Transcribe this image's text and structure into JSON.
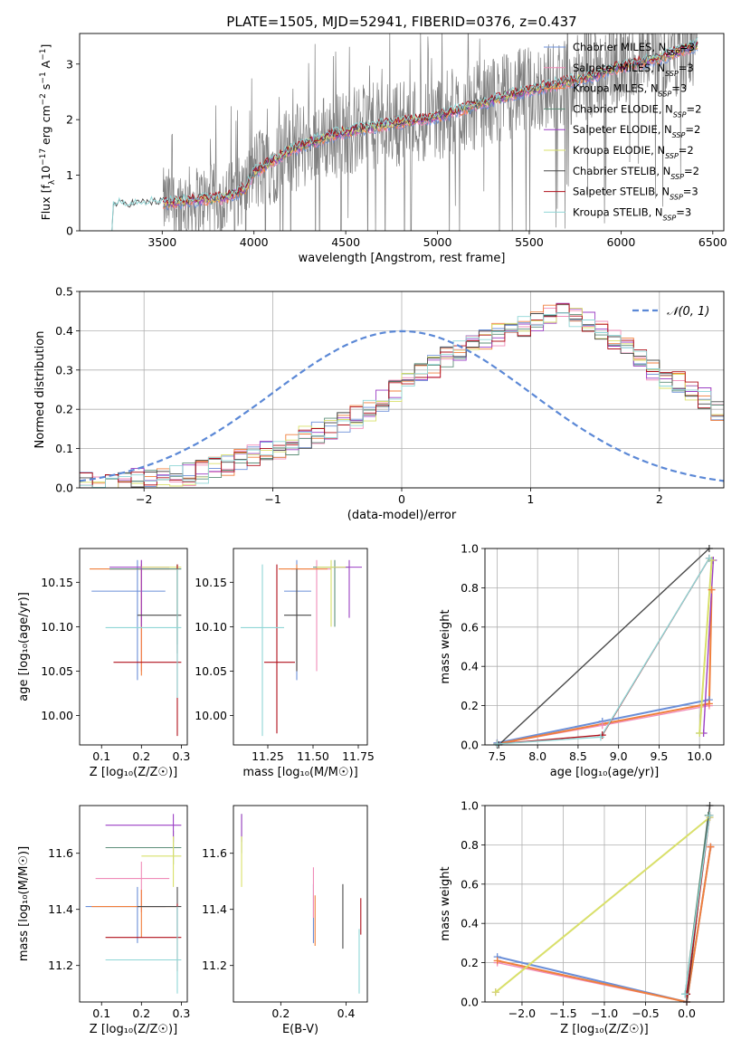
{
  "figure_title": "PLATE=1505, MJD=52941, FIBERID=0376, z=0.437",
  "series_colors": {
    "Chabrier MILES": "#6b8fd8",
    "Salpeter MILES": "#f08cb8",
    "Kroupa MILES": "#f07f3c",
    "Chabrier ELODIE": "#5e8f7a",
    "Salpeter ELODIE": "#9b3fc4",
    "Kroupa ELODIE": "#d9e06a",
    "Chabrier STELIB": "#4a4a4a",
    "Salpeter STELIB": "#b0101b",
    "Kroupa STELIB": "#8fd6d6"
  },
  "chart_data": [
    {
      "id": "spectrum",
      "type": "line",
      "title": "PLATE=1505, MJD=52941, FIBERID=0376, z=0.437",
      "xlabel": "wavelength [Angstrom, rest frame]",
      "ylabel_parts": [
        "Flux [f",
        "λ",
        "10",
        "−17",
        " erg cm",
        "−2",
        " s",
        "−1",
        " A",
        "−1",
        "]"
      ],
      "xlim": [
        3050,
        6560
      ],
      "ylim": [
        0,
        3.55
      ],
      "xticks": [
        3500,
        4000,
        4500,
        5000,
        5500,
        6000,
        6500
      ],
      "yticks": [
        0,
        1,
        2,
        3
      ],
      "legend_position": "upper-right",
      "legend": [
        {
          "base": "Chabrier MILES, N",
          "sub": "SSP",
          "tail": "=3",
          "color": "#6b8fd8"
        },
        {
          "base": "Salpeter MILES, N",
          "sub": "SSP",
          "tail": "=3",
          "color": "#f08cb8"
        },
        {
          "base": "Kroupa MILES, N",
          "sub": "SSP",
          "tail": "=3",
          "color": "#f07f3c"
        },
        {
          "base": "Chabrier ELODIE, N",
          "sub": "SSP",
          "tail": "=2",
          "color": "#5e8f7a"
        },
        {
          "base": "Salpeter ELODIE, N",
          "sub": "SSP",
          "tail": "=2",
          "color": "#9b3fc4"
        },
        {
          "base": "Kroupa ELODIE, N",
          "sub": "SSP",
          "tail": "=2",
          "color": "#d9e06a"
        },
        {
          "base": "Chabrier STELIB, N",
          "sub": "SSP",
          "tail": "=2",
          "color": "#4a4a4a"
        },
        {
          "base": "Salpeter STELIB, N",
          "sub": "SSP",
          "tail": "=3",
          "color": "#b0101b"
        },
        {
          "base": "Kroupa STELIB, N",
          "sub": "SSP",
          "tail": "=3",
          "color": "#8fd6d6"
        }
      ],
      "data_color": "#7f7f7f",
      "data_range": [
        3505,
        6420
      ],
      "continuum_wavelength": [
        3210,
        3500,
        3700,
        3850,
        3950,
        4000,
        4200,
        4400,
        4600,
        4800,
        5000,
        5200,
        5400,
        5600,
        5800,
        6000,
        6200,
        6420
      ],
      "continuum_flux": [
        0.45,
        0.5,
        0.55,
        0.6,
        0.75,
        1.05,
        1.45,
        1.7,
        1.85,
        1.95,
        2.05,
        2.25,
        2.45,
        2.6,
        2.75,
        2.95,
        3.1,
        3.35
      ]
    },
    {
      "id": "residuals",
      "type": "step",
      "xlabel": "(data-model)/error",
      "ylabel": "Normed distribution",
      "xlim": [
        -2.5,
        2.5
      ],
      "ylim": [
        0,
        0.5
      ],
      "xticks": [
        -2,
        -1,
        0,
        1,
        2
      ],
      "yticks": [
        0.0,
        0.1,
        0.2,
        0.3,
        0.4,
        0.5
      ],
      "grid": true,
      "legend_position": "upper-right",
      "legend_label": "𝒩(0, 1)",
      "normal_color": "#5b88d6",
      "bin_width": 0.1,
      "bin_start": -2.5,
      "histogram_values": [
        0.01,
        0.01,
        0.015,
        0.02,
        0.02,
        0.025,
        0.03,
        0.03,
        0.035,
        0.04,
        0.05,
        0.06,
        0.07,
        0.08,
        0.09,
        0.1,
        0.11,
        0.13,
        0.14,
        0.15,
        0.165,
        0.18,
        0.2,
        0.22,
        0.25,
        0.27,
        0.29,
        0.31,
        0.33,
        0.35,
        0.37,
        0.38,
        0.39,
        0.4,
        0.41,
        0.42,
        0.44,
        0.45,
        0.44,
        0.42,
        0.4,
        0.38,
        0.36,
        0.33,
        0.3,
        0.28,
        0.27,
        0.25,
        0.23,
        0.2
      ]
    },
    {
      "id": "age-vs-z",
      "type": "errorbar",
      "xlabel": "Z [log₁₀(Z/Z☉)]",
      "ylabel": "age  [log₁₀(age/yr)]",
      "xlim": [
        0.045,
        0.315
      ],
      "ylim": [
        9.967,
        10.188
      ],
      "xticks": [
        0.1,
        0.2,
        0.3
      ],
      "yticks": [
        10.0,
        10.05,
        10.1,
        10.15
      ],
      "points": [
        {
          "x": 0.19,
          "y": 10.14,
          "xerr": [
            0.075,
            0.26
          ],
          "yerr": [
            10.04,
            10.175
          ],
          "color": "#6b8fd8"
        },
        {
          "x": 0.2,
          "y": 10.165,
          "xerr": [
            0.12,
            0.27
          ],
          "yerr": [
            10.05,
            10.175
          ],
          "color": "#f08cb8"
        },
        {
          "x": 0.2,
          "y": 10.165,
          "xerr": [
            0.07,
            0.29
          ],
          "yerr": [
            10.045,
            10.17
          ],
          "color": "#f07f3c"
        },
        {
          "x": 0.29,
          "y": 10.165,
          "xerr": [
            0.12,
            0.3
          ],
          "yerr": [
            10.08,
            10.17
          ],
          "color": "#5e8f7a"
        },
        {
          "x": 0.2,
          "y": 10.167,
          "xerr": [
            0.12,
            0.27
          ],
          "yerr": [
            10.1,
            10.175
          ],
          "color": "#9b3fc4"
        },
        {
          "x": 0.29,
          "y": 10.167,
          "xerr": [
            0.2,
            0.3
          ],
          "yerr": [
            10.1,
            10.17
          ],
          "color": "#d9e06a"
        },
        {
          "x": 0.29,
          "y": 10.113,
          "xerr": [
            0.19,
            0.3
          ],
          "yerr": [
            10.07,
            10.17
          ],
          "color": "#4a4a4a"
        },
        {
          "x": 0.29,
          "y": 10.06,
          "xerr": [
            0.13,
            0.3
          ],
          "yerr": [
            9.977,
            10.17
          ],
          "color": "#b0101b"
        },
        {
          "x": 0.29,
          "y": 10.099,
          "xerr": [
            0.11,
            0.3
          ],
          "yerr": [
            10.02,
            10.165
          ],
          "color": "#8fd6d6"
        }
      ]
    },
    {
      "id": "age-vs-mass",
      "type": "errorbar",
      "xlabel": "mass [log₁₀(M/M☉)]",
      "ylabel": "",
      "xlim": [
        11.06,
        11.8
      ],
      "ylim": [
        9.967,
        10.188
      ],
      "xticks": [
        11.25,
        11.5,
        11.75
      ],
      "yticks": [
        10.0,
        10.05,
        10.1,
        10.15
      ],
      "points": [
        {
          "x": 11.41,
          "y": 10.14,
          "xerr": [
            11.34,
            11.49
          ],
          "yerr": [
            10.04,
            10.175
          ],
          "color": "#6b8fd8"
        },
        {
          "x": 11.52,
          "y": 10.165,
          "xerr": [
            11.38,
            11.6
          ],
          "yerr": [
            10.05,
            10.175
          ],
          "color": "#f08cb8"
        },
        {
          "x": 11.41,
          "y": 10.165,
          "xerr": [
            11.31,
            11.58
          ],
          "yerr": [
            10.05,
            10.17
          ],
          "color": "#f07f3c"
        },
        {
          "x": 11.62,
          "y": 10.167,
          "xerr": [
            11.5,
            11.7
          ],
          "yerr": [
            10.1,
            10.175
          ],
          "color": "#5e8f7a"
        },
        {
          "x": 11.7,
          "y": 10.167,
          "xerr": [
            11.62,
            11.77
          ],
          "yerr": [
            10.11,
            10.175
          ],
          "color": "#9b3fc4"
        },
        {
          "x": 11.6,
          "y": 10.167,
          "xerr": [
            11.52,
            11.68
          ],
          "yerr": [
            10.1,
            10.175
          ],
          "color": "#d9e06a"
        },
        {
          "x": 11.41,
          "y": 10.113,
          "xerr": [
            11.34,
            11.49
          ],
          "yerr": [
            10.05,
            10.165
          ],
          "color": "#4a4a4a"
        },
        {
          "x": 11.3,
          "y": 10.06,
          "xerr": [
            11.23,
            11.4
          ],
          "yerr": [
            9.98,
            10.17
          ],
          "color": "#b0101b"
        },
        {
          "x": 11.22,
          "y": 10.099,
          "xerr": [
            11.1,
            11.34
          ],
          "yerr": [
            9.977,
            10.17
          ],
          "color": "#8fd6d6"
        }
      ]
    },
    {
      "id": "weight-vs-age",
      "type": "line",
      "xlabel": "age  [log₁₀(age/yr)]",
      "ylabel": "mass weight",
      "xlim": [
        7.35,
        10.3
      ],
      "ylim": [
        0,
        1.0
      ],
      "xticks": [
        7.5,
        8.0,
        8.5,
        9.0,
        9.5,
        10.0
      ],
      "yticks": [
        0.0,
        0.2,
        0.4,
        0.6,
        0.8,
        1.0
      ],
      "grid": true,
      "series": [
        {
          "name": "Chabrier MILES",
          "color": "#6b8fd8",
          "x": [
            7.5,
            8.8,
            10.12
          ],
          "y": [
            0.01,
            0.12,
            0.23
          ]
        },
        {
          "name": "Salpeter MILES",
          "color": "#f08cb8",
          "x": [
            7.5,
            8.8,
            10.12
          ],
          "y": [
            0.005,
            0.1,
            0.2
          ]
        },
        {
          "name": "Kroupa MILES",
          "color": "#f07f3c",
          "x": [
            7.5,
            10.12,
            10.15
          ],
          "y": [
            0.005,
            0.21,
            0.79
          ]
        },
        {
          "name": "Chabrier ELODIE",
          "color": "#5e8f7a",
          "x": [
            10.0,
            10.15
          ],
          "y": [
            0.06,
            0.94
          ]
        },
        {
          "name": "Salpeter ELODIE",
          "color": "#9b3fc4",
          "x": [
            10.05,
            10.17
          ],
          "y": [
            0.06,
            0.94
          ]
        },
        {
          "name": "Kroupa ELODIE",
          "color": "#d9e06a",
          "x": [
            10.0,
            10.15
          ],
          "y": [
            0.06,
            0.94
          ]
        },
        {
          "name": "Chabrier STELIB",
          "color": "#4a4a4a",
          "x": [
            7.52,
            10.12
          ],
          "y": [
            0.0,
            1.0
          ]
        },
        {
          "name": "Salpeter STELIB",
          "color": "#b0101b",
          "x": [
            7.5,
            8.8,
            10.12
          ],
          "y": [
            0.005,
            0.05,
            0.95
          ]
        },
        {
          "name": "Kroupa STELIB",
          "color": "#8fd6d6",
          "x": [
            7.5,
            8.78,
            10.12
          ],
          "y": [
            0.005,
            0.04,
            0.95
          ]
        }
      ]
    },
    {
      "id": "mass-vs-z",
      "type": "errorbar",
      "xlabel": "Z [log₁₀(Z/Z☉)]",
      "ylabel": "mass [log₁₀(M/M☉)]",
      "xlim": [
        0.045,
        0.315
      ],
      "ylim": [
        11.07,
        11.77
      ],
      "xticks": [
        0.1,
        0.2,
        0.3
      ],
      "yticks": [
        11.2,
        11.4,
        11.6
      ],
      "points": [
        {
          "x": 0.19,
          "y": 11.41,
          "xerr": [
            0.06,
            0.26
          ],
          "yerr": [
            11.28,
            11.48
          ],
          "color": "#6b8fd8"
        },
        {
          "x": 0.2,
          "y": 11.51,
          "xerr": [
            0.085,
            0.27
          ],
          "yerr": [
            11.39,
            11.57
          ],
          "color": "#f08cb8"
        },
        {
          "x": 0.2,
          "y": 11.41,
          "xerr": [
            0.075,
            0.29
          ],
          "yerr": [
            11.3,
            11.47
          ],
          "color": "#f07f3c"
        },
        {
          "x": 0.28,
          "y": 11.62,
          "xerr": [
            0.11,
            0.3
          ],
          "yerr": [
            11.56,
            11.68
          ],
          "color": "#5e8f7a"
        },
        {
          "x": 0.28,
          "y": 11.7,
          "xerr": [
            0.11,
            0.3
          ],
          "yerr": [
            11.64,
            11.74
          ],
          "color": "#9b3fc4"
        },
        {
          "x": 0.28,
          "y": 11.59,
          "xerr": [
            0.2,
            0.3
          ],
          "yerr": [
            11.48,
            11.66
          ],
          "color": "#d9e06a"
        },
        {
          "x": 0.29,
          "y": 11.41,
          "xerr": [
            0.19,
            0.3
          ],
          "yerr": [
            11.3,
            11.48
          ],
          "color": "#4a4a4a"
        },
        {
          "x": 0.29,
          "y": 11.3,
          "xerr": [
            0.11,
            0.3
          ],
          "yerr": [
            11.18,
            11.42
          ],
          "color": "#b0101b"
        },
        {
          "x": 0.29,
          "y": 11.22,
          "xerr": [
            0.11,
            0.3
          ],
          "yerr": [
            11.1,
            11.41
          ],
          "color": "#8fd6d6"
        }
      ]
    },
    {
      "id": "mass-vs-ebv",
      "type": "errorbar",
      "xlabel": "E(B-V)",
      "ylabel": "",
      "xlim": [
        0.055,
        0.465
      ],
      "ylim": [
        11.07,
        11.77
      ],
      "xticks": [
        0.2,
        0.4
      ],
      "yticks": [
        11.2,
        11.4,
        11.6
      ],
      "points": [
        {
          "x": 0.3,
          "y": 11.41,
          "xerr": [
            0.3,
            0.3
          ],
          "yerr": [
            11.28,
            11.49
          ],
          "color": "#6b8fd8"
        },
        {
          "x": 0.3,
          "y": 11.46,
          "xerr": [
            0.3,
            0.3
          ],
          "yerr": [
            11.37,
            11.55
          ],
          "color": "#f08cb8"
        },
        {
          "x": 0.305,
          "y": 11.41,
          "xerr": [
            0.305,
            0.305
          ],
          "yerr": [
            11.27,
            11.45
          ],
          "color": "#f07f3c"
        },
        {
          "x": 0.08,
          "y": 11.66,
          "xerr": [
            0.08,
            0.08
          ],
          "yerr": [
            11.6,
            11.74
          ],
          "color": "#5e8f7a"
        },
        {
          "x": 0.08,
          "y": 11.7,
          "xerr": [
            0.08,
            0.08
          ],
          "yerr": [
            11.64,
            11.74
          ],
          "color": "#9b3fc4"
        },
        {
          "x": 0.08,
          "y": 11.59,
          "xerr": [
            0.08,
            0.08
          ],
          "yerr": [
            11.48,
            11.66
          ],
          "color": "#d9e06a"
        },
        {
          "x": 0.39,
          "y": 11.41,
          "xerr": [
            0.39,
            0.39
          ],
          "yerr": [
            11.26,
            11.49
          ],
          "color": "#4a4a4a"
        },
        {
          "x": 0.445,
          "y": 11.4,
          "xerr": [
            0.445,
            0.445
          ],
          "yerr": [
            11.31,
            11.44
          ],
          "color": "#b0101b"
        },
        {
          "x": 0.44,
          "y": 11.22,
          "xerr": [
            0.44,
            0.44
          ],
          "yerr": [
            11.1,
            11.33
          ],
          "color": "#8fd6d6"
        }
      ]
    },
    {
      "id": "weight-vs-z",
      "type": "line",
      "xlabel": "Z [log₁₀(Z/Z☉)]",
      "ylabel": "mass weight",
      "xlim": [
        -2.45,
        0.45
      ],
      "ylim": [
        0,
        1.0
      ],
      "xticks": [
        -2.0,
        -1.5,
        -1.0,
        -0.5,
        0.0
      ],
      "yticks": [
        0.0,
        0.2,
        0.4,
        0.6,
        0.8,
        1.0
      ],
      "grid": true,
      "series": [
        {
          "name": "Chabrier MILES",
          "color": "#6b8fd8",
          "x": [
            -2.3,
            0.0,
            0.29
          ],
          "y": [
            0.23,
            0.0,
            0.79
          ]
        },
        {
          "name": "Salpeter MILES",
          "color": "#f08cb8",
          "x": [
            -2.3,
            0.0,
            0.29
          ],
          "y": [
            0.2,
            0.0,
            0.79
          ]
        },
        {
          "name": "Kroupa MILES",
          "color": "#f07f3c",
          "x": [
            -2.3,
            0.0,
            0.29
          ],
          "y": [
            0.21,
            0.0,
            0.79
          ]
        },
        {
          "name": "Chabrier ELODIE",
          "color": "#5e8f7a",
          "x": [
            -0.02,
            0.26
          ],
          "y": [
            0.04,
            0.95
          ]
        },
        {
          "name": "Salpeter ELODIE",
          "color": "#9b3fc4",
          "x": [
            -2.32,
            0.28
          ],
          "y": [
            0.05,
            0.94
          ]
        },
        {
          "name": "Kroupa ELODIE",
          "color": "#d9e06a",
          "x": [
            -2.32,
            0.28
          ],
          "y": [
            0.05,
            0.94
          ]
        },
        {
          "name": "Chabrier STELIB",
          "color": "#4a4a4a",
          "x": [
            0.0,
            0.28
          ],
          "y": [
            0.0,
            1.0
          ]
        },
        {
          "name": "Salpeter STELIB",
          "color": "#b0101b",
          "x": [
            0.0,
            0.28
          ],
          "y": [
            0.04,
            0.95
          ]
        },
        {
          "name": "Kroupa STELIB",
          "color": "#8fd6d6",
          "x": [
            -0.02,
            0.28
          ],
          "y": [
            0.04,
            0.95
          ]
        }
      ]
    }
  ]
}
